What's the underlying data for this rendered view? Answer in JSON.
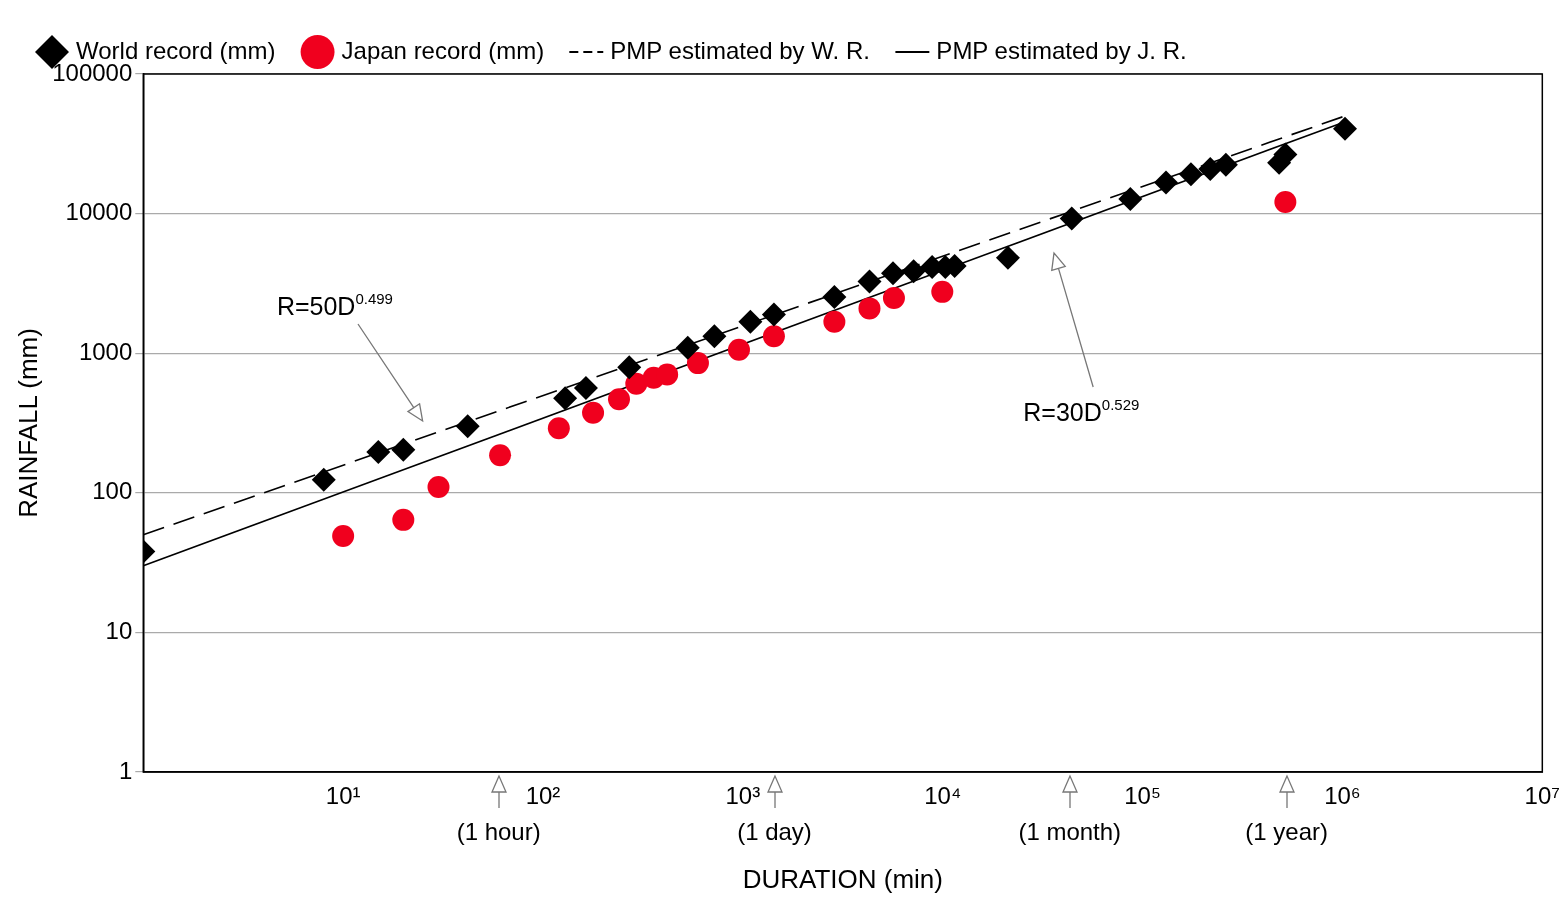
{
  "chart_data": {
    "type": "scatter",
    "xlabel": "DURATION (min)",
    "ylabel": "RAINFALL (mm)",
    "log": "xy",
    "grid": "y",
    "legend": "top left",
    "xlim": [
      1,
      10000000
    ],
    "ylim": [
      1,
      100000
    ],
    "xticks": [
      {
        "value": 1,
        "label": null
      },
      {
        "value": 10,
        "label": "10¹"
      },
      {
        "value": 100,
        "label": "10²"
      },
      {
        "value": 1000,
        "label": "10³"
      },
      {
        "value": 10000,
        "label": "10⁴"
      },
      {
        "value": 100000,
        "label": "10⁵"
      },
      {
        "value": 1000000,
        "label": "10⁶"
      },
      {
        "value": 10000000,
        "label": "10⁷"
      }
    ],
    "yticks": [
      1,
      10,
      100,
      1000,
      10000,
      100000
    ],
    "series": [
      {
        "name": "World record (mm)",
        "type": "scatter",
        "marker": "diamond",
        "color": "#000000",
        "x": [
          1,
          8,
          15,
          20,
          42,
          129,
          164,
          270,
          530,
          720,
          1090,
          1430,
          2870,
          4300,
          5640,
          7150,
          8850,
          10300,
          11470,
          21200,
          44200,
          86800,
          131000,
          174500,
          218000,
          261000,
          482000,
          518000,
          1030000
        ],
        "values": [
          38,
          124,
          196,
          203,
          300,
          476,
          564,
          794,
          1096,
          1322,
          1679,
          1891,
          2525,
          3260,
          3735,
          3870,
          4140,
          4140,
          4210,
          4820,
          9210,
          12740,
          16700,
          19170,
          20900,
          22350,
          23100,
          26500,
          40600
        ]
      },
      {
        "name": "Japan record (mm)",
        "type": "scatter",
        "marker": "circle",
        "color": "#f0001e",
        "x": [
          10,
          20,
          30,
          61,
          120,
          178,
          240,
          293,
          358,
          418,
          596,
          956,
          1430,
          2870,
          4300,
          5700,
          9950,
          518000
        ],
        "values": [
          49,
          64,
          110,
          186,
          290,
          375,
          468,
          604,
          668,
          704,
          849,
          1060,
          1322,
          1679,
          2094,
          2484,
          2750,
          12100
        ]
      },
      {
        "name": "PMP estimated by W. R.",
        "type": "line",
        "marker": "none",
        "line_style": "dashed",
        "color": "#000000",
        "x": [
          1,
          1000000
        ],
        "values": [
          50,
          49300
        ]
      },
      {
        "name": "PMP estimated by J. R.",
        "type": "line",
        "marker": "none",
        "line_style": "solid",
        "color": "#000000",
        "x": [
          1,
          1000000
        ],
        "values": [
          30,
          44800
        ]
      }
    ],
    "annotations": [
      "R=50D$^{0.499}$",
      "R=30D$^{0.529}$",
      {
        "text": "(1 hour)",
        "x": 60
      },
      {
        "text": "(1 day)",
        "x": 1440
      },
      {
        "text": "(1 month)",
        "x": 43200
      },
      {
        "text": "(1 year)",
        "x": 525600
      }
    ]
  }
}
